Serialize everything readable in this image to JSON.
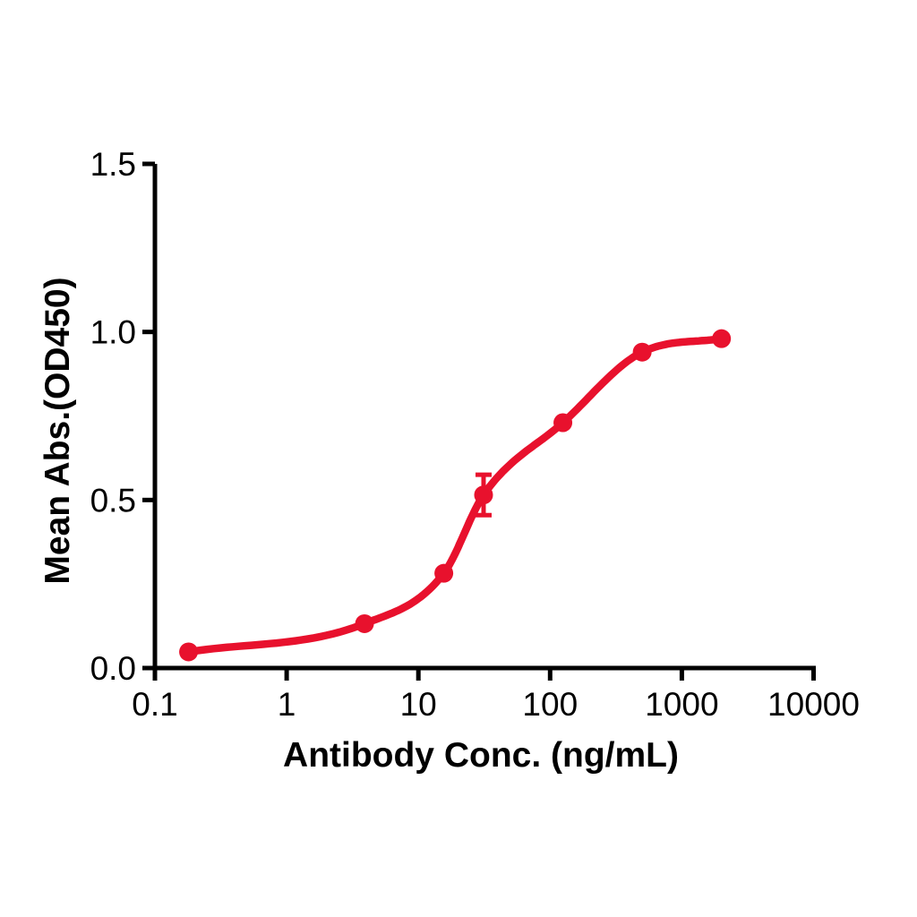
{
  "chart_data": {
    "type": "scatter",
    "title": "",
    "xlabel": "Antibody Conc. (ng/mL)",
    "ylabel": "Mean Abs.(OD450)",
    "x_scale": "log10",
    "xlim": [
      0.1,
      10000
    ],
    "ylim": [
      0.0,
      1.5
    ],
    "grid": false,
    "legend_position": "none",
    "x_ticks": [
      0.1,
      1,
      10,
      100,
      1000,
      10000
    ],
    "x_tick_labels": [
      "0.1",
      "1",
      "10",
      "100",
      "1000",
      "10000"
    ],
    "y_ticks": [
      0.0,
      0.5,
      1.0,
      1.5
    ],
    "y_tick_labels": [
      "0.0",
      "0.5",
      "1.0",
      "1.5"
    ],
    "series": [
      {
        "name": "Mean Abs.(OD450)",
        "color": "#E8112D",
        "marker": "circle",
        "fit": "4PL sigmoid through points",
        "points": [
          {
            "x": 0.18,
            "y": 0.048
          },
          {
            "x": 3.9,
            "y": 0.132
          },
          {
            "x": 15.6,
            "y": 0.282
          },
          {
            "x": 31.25,
            "y": 0.515,
            "error": 0.06
          },
          {
            "x": 125,
            "y": 0.73
          },
          {
            "x": 500,
            "y": 0.94
          },
          {
            "x": 2000,
            "y": 0.98
          }
        ]
      }
    ]
  },
  "colors": {
    "series": "#E8112D",
    "axis": "#000000",
    "background": "#FFFFFF"
  }
}
